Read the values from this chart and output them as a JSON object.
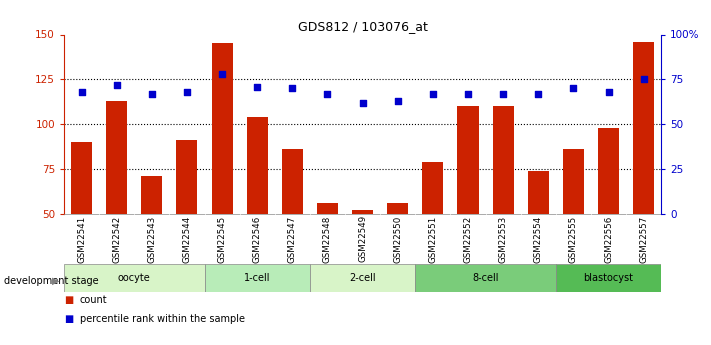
{
  "title": "GDS812 / 103076_at",
  "samples": [
    "GSM22541",
    "GSM22542",
    "GSM22543",
    "GSM22544",
    "GSM22545",
    "GSM22546",
    "GSM22547",
    "GSM22548",
    "GSM22549",
    "GSM22550",
    "GSM22551",
    "GSM22552",
    "GSM22553",
    "GSM22554",
    "GSM22555",
    "GSM22556",
    "GSM22557"
  ],
  "counts": [
    90,
    113,
    71,
    91,
    145,
    104,
    86,
    56,
    52,
    56,
    79,
    110,
    110,
    74,
    86,
    98,
    146
  ],
  "percentiles": [
    68,
    72,
    67,
    68,
    78,
    71,
    70,
    67,
    62,
    63,
    67,
    67,
    67,
    67,
    70,
    68,
    75
  ],
  "stages": [
    {
      "label": "oocyte",
      "start": 0,
      "end": 3,
      "color": "#d8f4c8"
    },
    {
      "label": "1-cell",
      "start": 4,
      "end": 6,
      "color": "#b8ecb8"
    },
    {
      "label": "2-cell",
      "start": 7,
      "end": 9,
      "color": "#d8f4c8"
    },
    {
      "label": "8-cell",
      "start": 10,
      "end": 13,
      "color": "#7acc7a"
    },
    {
      "label": "blastocyst",
      "start": 14,
      "end": 16,
      "color": "#55bb55"
    }
  ],
  "ylim_left": [
    50,
    150
  ],
  "ylim_right": [
    0,
    100
  ],
  "yticks_left": [
    50,
    75,
    100,
    125,
    150
  ],
  "yticks_right": [
    0,
    25,
    50,
    75,
    100
  ],
  "ytick_labels_right": [
    "0",
    "25",
    "50",
    "75",
    "100%"
  ],
  "bar_color": "#cc2200",
  "dot_color": "#0000cc",
  "bg_color": "#ffffff",
  "tick_label_color_left": "#cc2200",
  "tick_label_color_right": "#0000cc",
  "legend_count_label": "count",
  "legend_pct_label": "percentile rank within the sample",
  "dev_stage_label": "development stage",
  "sample_bg_color": "#cccccc",
  "dotted_lines": [
    75,
    100,
    125
  ],
  "bar_width": 0.6,
  "dot_size": 22
}
